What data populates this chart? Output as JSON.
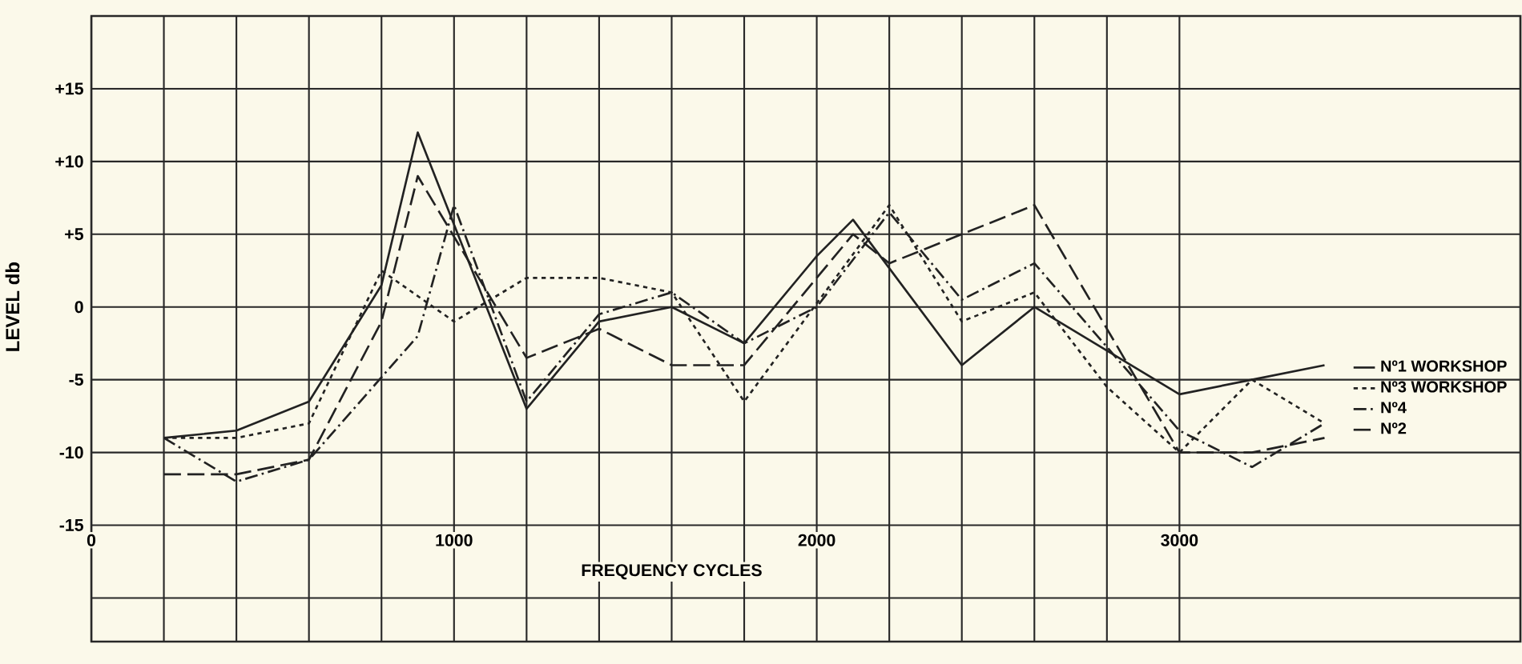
{
  "chart_data": {
    "type": "line",
    "xlabel": "FREQUENCY   CYCLES",
    "ylabel": "LEVEL   db",
    "xlim": [
      0,
      3940
    ],
    "ylim": [
      -23,
      20
    ],
    "xticks": [
      0,
      1000,
      2000,
      3000
    ],
    "yticks": [
      {
        "value": -20,
        "label": null
      },
      {
        "value": -15,
        "label": "-15"
      },
      {
        "value": -10,
        "label": "-10"
      },
      {
        "value": -5,
        "label": "-5"
      },
      {
        "value": 0,
        "label": "0"
      },
      {
        "value": 5,
        "label": "+5"
      },
      {
        "value": 10,
        "label": "+10"
      },
      {
        "value": 15,
        "label": "+15"
      }
    ],
    "grid": true,
    "legend": "right",
    "marker": "none",
    "series": [
      {
        "name": "Nº1 WORKSHOP",
        "color": "#222222",
        "line_style": "solid",
        "x": [
          200,
          400,
          600,
          800,
          900,
          1200,
          1400,
          1600,
          1800,
          2000,
          2100,
          2400,
          2600,
          3000,
          3200,
          3400
        ],
        "values": [
          -9,
          -8.5,
          -6.5,
          1.5,
          12,
          -7,
          -1,
          0,
          -2.5,
          3.5,
          6,
          -4,
          0,
          -6,
          -5,
          -4
        ]
      },
      {
        "name": "Nº3 WORKSHOP",
        "color": "#222222",
        "line_style": "dotted",
        "x": [
          200,
          400,
          600,
          800,
          1000,
          1200,
          1400,
          1600,
          1800,
          2200,
          2400,
          2600,
          2800,
          3000,
          3200,
          3400
        ],
        "values": [
          -9,
          -9,
          -8,
          2.5,
          -1,
          2,
          2,
          1,
          -6.5,
          7,
          -1,
          1,
          -5.5,
          -10,
          -5,
          -8
        ]
      },
      {
        "name": "Nº4",
        "color": "#222222",
        "line_style": "dashdot",
        "x": [
          200,
          400,
          600,
          900,
          1000,
          1200,
          1400,
          1600,
          1800,
          2000,
          2200,
          2400,
          2600,
          3000,
          3200,
          3400
        ],
        "values": [
          -9,
          -12,
          -10.5,
          -2,
          7,
          -6.5,
          -0.5,
          1,
          -2.5,
          0,
          6.5,
          0.5,
          3,
          -8.5,
          -11,
          -8
        ]
      },
      {
        "name": "Nº2",
        "color": "#222222",
        "line_style": "dashed",
        "x": [
          200,
          400,
          600,
          800,
          900,
          1200,
          1400,
          1600,
          1800,
          2100,
          2200,
          2600,
          3000,
          3200,
          3400
        ],
        "values": [
          -11.5,
          -11.5,
          -10.5,
          -1,
          9,
          -3.5,
          -1.5,
          -4,
          -4,
          5,
          3,
          7,
          -10,
          -10,
          -9
        ]
      }
    ]
  }
}
